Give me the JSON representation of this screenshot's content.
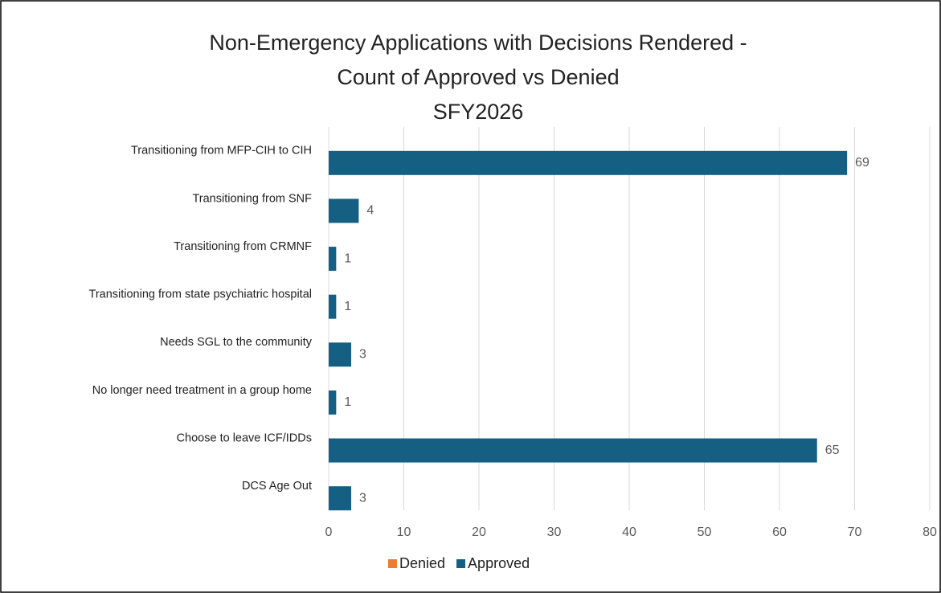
{
  "chart_data": {
    "type": "bar",
    "orientation": "horizontal",
    "title": [
      "Non-Emergency Applications with Decisions Rendered -",
      "Count of Approved vs Denied",
      "SFY2026"
    ],
    "categories": [
      "Transitioning from MFP-CIH to CIH",
      "Transitioning from SNF",
      "Transitioning from CRMNF",
      "Transitioning  from state psychiatric hospital",
      "Needs SGL to the community",
      "No longer need treatment in a group home",
      "Choose to leave ICF/IDDs",
      "DCS Age Out"
    ],
    "series": [
      {
        "name": "Denied",
        "color": "#ed7d31",
        "values": [
          0,
          0,
          0,
          0,
          0,
          0,
          0,
          0
        ],
        "data_labels": false
      },
      {
        "name": "Approved",
        "color": "#156082",
        "values": [
          69,
          4,
          1,
          1,
          3,
          1,
          65,
          3
        ],
        "data_labels": true
      }
    ],
    "xlim": [
      0,
      80
    ],
    "xticks": [
      0,
      10,
      20,
      30,
      40,
      50,
      60,
      70,
      80
    ],
    "grid": true,
    "legend": "bottom"
  }
}
